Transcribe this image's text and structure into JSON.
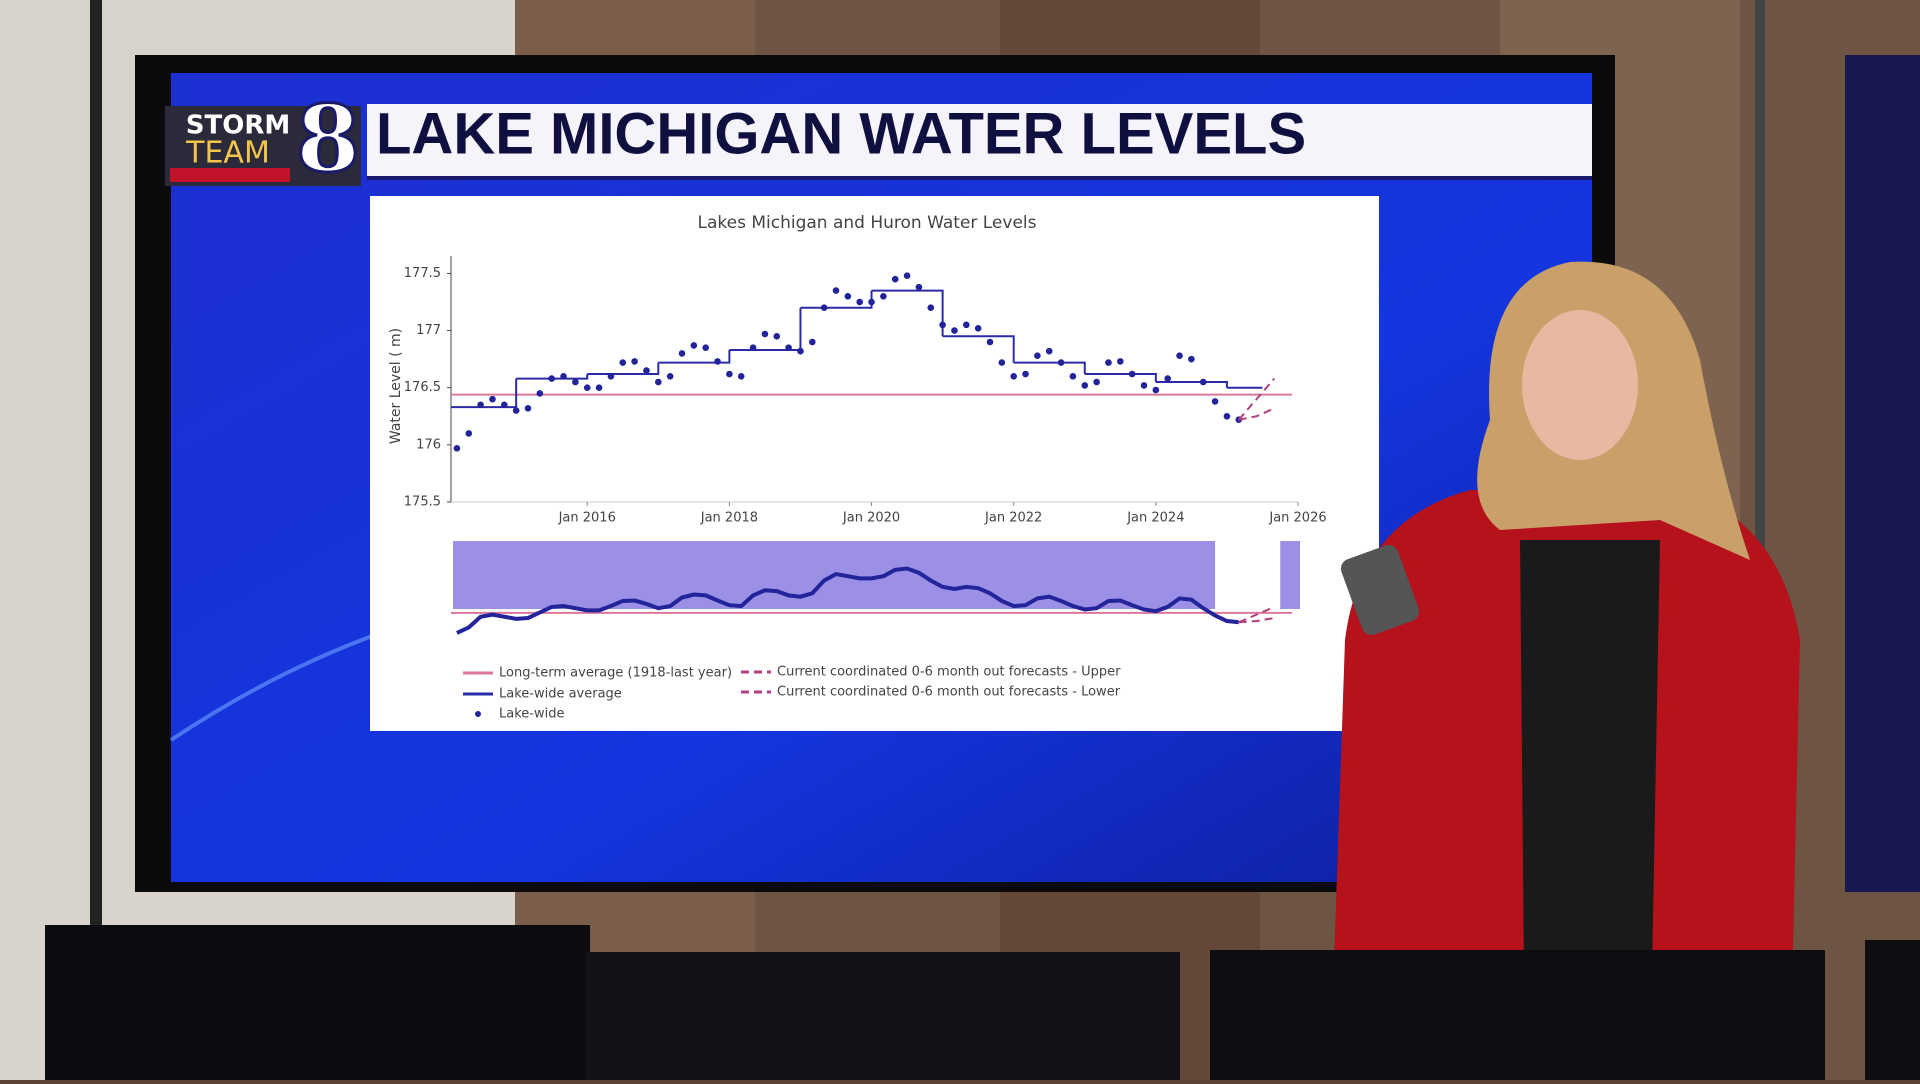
{
  "banner": {
    "logo_top": "STORM",
    "logo_bottom": "TEAM",
    "logo_number": "8",
    "title": "LAKE MICHIGAN WATER LEVELS"
  },
  "chart_data": {
    "type": "line",
    "title": "Lakes Michigan and Huron Water Levels",
    "y_label": "Water Level ( m)",
    "xlim": [
      "2014-02",
      "2026-01"
    ],
    "ylim": [
      175.5,
      177.6
    ],
    "xticks": [
      {
        "value": "2016-01",
        "label": "Jan 2016"
      },
      {
        "value": "2018-01",
        "label": "Jan 2018"
      },
      {
        "value": "2020-01",
        "label": "Jan 2020"
      },
      {
        "value": "2022-01",
        "label": "Jan 2022"
      },
      {
        "value": "2024-01",
        "label": "Jan 2024"
      },
      {
        "value": "2026-01",
        "label": "Jan 2026"
      }
    ],
    "yticks": [
      175.5,
      176,
      176.5,
      177,
      177.5
    ],
    "grid": false,
    "range_slider": true,
    "series": [
      {
        "name": "Long-term average (1918-last year)",
        "color": "#d9789c",
        "mode": "lines",
        "dash": false,
        "x": [
          "2014-02",
          "2025-12"
        ],
        "values": [
          176.44,
          176.44
        ]
      },
      {
        "name": "Lake-wide average",
        "color": "#2b2ba8",
        "mode": "steps",
        "dash": false,
        "x": [
          "2014-02",
          "2015-01",
          "2016-01",
          "2017-01",
          "2018-01",
          "2019-01",
          "2020-01",
          "2021-01",
          "2022-01",
          "2023-01",
          "2024-01",
          "2025-01",
          "2025-07"
        ],
        "values": [
          176.33,
          176.58,
          176.62,
          176.72,
          176.83,
          177.2,
          177.35,
          176.95,
          176.72,
          176.62,
          176.55,
          176.5,
          176.5
        ]
      },
      {
        "name": "Lake-wide",
        "color": "#23239a",
        "mode": "markers",
        "dash": false,
        "x": [
          "2014-03",
          "2014-05",
          "2014-07",
          "2014-09",
          "2014-11",
          "2015-01",
          "2015-03",
          "2015-05",
          "2015-07",
          "2015-09",
          "2015-11",
          "2016-01",
          "2016-03",
          "2016-05",
          "2016-07",
          "2016-09",
          "2016-11",
          "2017-01",
          "2017-03",
          "2017-05",
          "2017-07",
          "2017-09",
          "2017-11",
          "2018-01",
          "2018-03",
          "2018-05",
          "2018-07",
          "2018-09",
          "2018-11",
          "2019-01",
          "2019-03",
          "2019-05",
          "2019-07",
          "2019-09",
          "2019-11",
          "2020-01",
          "2020-03",
          "2020-05",
          "2020-07",
          "2020-09",
          "2020-11",
          "2021-01",
          "2021-03",
          "2021-05",
          "2021-07",
          "2021-09",
          "2021-11",
          "2022-01",
          "2022-03",
          "2022-05",
          "2022-07",
          "2022-09",
          "2022-11",
          "2023-01",
          "2023-03",
          "2023-05",
          "2023-07",
          "2023-09",
          "2023-11",
          "2024-01",
          "2024-03",
          "2024-05",
          "2024-07",
          "2024-09",
          "2024-11",
          "2025-01",
          "2025-03"
        ],
        "values": [
          175.97,
          176.1,
          176.35,
          176.4,
          176.35,
          176.3,
          176.32,
          176.45,
          176.58,
          176.6,
          176.55,
          176.5,
          176.5,
          176.6,
          176.72,
          176.73,
          176.65,
          176.55,
          176.6,
          176.8,
          176.87,
          176.85,
          176.73,
          176.62,
          176.6,
          176.85,
          176.97,
          176.95,
          176.85,
          176.82,
          176.9,
          177.2,
          177.35,
          177.3,
          177.25,
          177.25,
          177.3,
          177.45,
          177.48,
          177.38,
          177.2,
          177.05,
          177.0,
          177.05,
          177.02,
          176.9,
          176.72,
          176.6,
          176.62,
          176.78,
          176.82,
          176.72,
          176.6,
          176.52,
          176.55,
          176.72,
          176.73,
          176.62,
          176.52,
          176.48,
          176.58,
          176.78,
          176.75,
          176.55,
          176.38,
          176.25,
          176.22
        ]
      },
      {
        "name": "Current coordinated 0-6 month out forecasts - Upper",
        "color": "#b0407f",
        "mode": "lines",
        "dash": true,
        "x": [
          "2025-03",
          "2025-06",
          "2025-09"
        ],
        "values": [
          176.22,
          176.4,
          176.58
        ]
      },
      {
        "name": "Current coordinated 0-6 month out forecasts - Lower",
        "color": "#b0407f",
        "mode": "lines",
        "dash": true,
        "x": [
          "2025-03",
          "2025-06",
          "2025-09"
        ],
        "values": [
          176.22,
          176.25,
          176.32
        ]
      }
    ]
  }
}
